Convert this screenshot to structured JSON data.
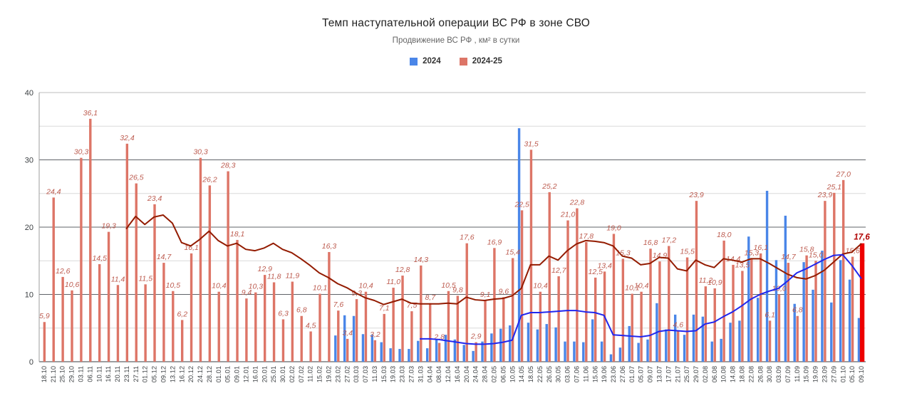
{
  "title": "Темп наступательной операции ВС РФ в зоне СВО",
  "subtitle": "Продвижение ВС РФ , км² в сутки",
  "legend": [
    {
      "label": "2024",
      "color": "#4a86e8"
    },
    {
      "label": "2024-25",
      "color": "#dd7567"
    }
  ],
  "colors": {
    "bar_2024": "#4a86e8",
    "bar_2024_25": "#dd7567",
    "bar_current": "#ee0000",
    "ma_2024_line": "#2026ee",
    "ma_2024_25_line": "#931b00",
    "data_label": "#bd5c50",
    "current_label": "#b00000",
    "grid_major": "#5f6368",
    "grid_minor": "#dadada",
    "grid_top": "#bdbdbd",
    "axis_text": "#3c4043"
  },
  "chart_data": {
    "type": "bar",
    "title": "Темп наступательной операции ВС РФ в зоне СВО",
    "subtitle": "Продвижение ВС РФ , км² в сутки",
    "ylim": [
      0,
      40
    ],
    "yticks": [
      0,
      10,
      20,
      30,
      40
    ],
    "grid": true,
    "legend_position": "top",
    "decimal_separator": ",",
    "categories": [
      "18.10",
      "21.10",
      "25.10",
      "29.10",
      "03.11",
      "06.11",
      "10.11",
      "16.11",
      "20.11",
      "23.11",
      "27.11",
      "01.12",
      "05.12",
      "09.12",
      "13.12",
      "16.12",
      "20.12",
      "24.12",
      "28.12",
      "01.01",
      "05.01",
      "09.01",
      "12.01",
      "16.01",
      "20.01",
      "25.01",
      "30.01",
      "02.02",
      "07.02",
      "11.02",
      "15.02",
      "19.02",
      "23.02",
      "27.02",
      "03.03",
      "07.03",
      "11.03",
      "15.03",
      "19.03",
      "23.03",
      "27.03",
      "31.03",
      "04.04",
      "08.04",
      "12.04",
      "16.04",
      "20.04",
      "24.04",
      "28.04",
      "02.05",
      "06.05",
      "10.05",
      "14.05",
      "18.05",
      "22.05",
      "26.05",
      "30.05",
      "03.06",
      "07.06",
      "11.06",
      "15.06",
      "19.06",
      "23.06",
      "27.06",
      "01.07",
      "05.07",
      "09.07",
      "13.07",
      "17.07",
      "21.07",
      "25.07",
      "29.07",
      "02.08",
      "06.08",
      "10.08",
      "14.08",
      "18.08",
      "22.08",
      "26.08",
      "30.08",
      "03.09",
      "07.09",
      "11.09",
      "15.09",
      "19.09",
      "23.09",
      "27.09",
      "01.10",
      "05.10",
      "09.10"
    ],
    "series": [
      {
        "name": "2024",
        "kind": "bar",
        "labeled": false,
        "values": [
          null,
          null,
          null,
          null,
          null,
          null,
          null,
          null,
          null,
          null,
          null,
          null,
          null,
          null,
          null,
          null,
          null,
          null,
          null,
          null,
          null,
          null,
          null,
          null,
          null,
          null,
          null,
          null,
          null,
          null,
          null,
          null,
          3.9,
          6.9,
          6.8,
          4.1,
          4.0,
          2.9,
          2.0,
          1.9,
          1.9,
          3.1,
          2.0,
          3.4,
          4.0,
          3.3,
          2.5,
          1.6,
          3.0,
          4.2,
          4.9,
          5.4,
          34.7,
          5.8,
          4.8,
          5.6,
          5.1,
          3.0,
          3.0,
          2.9,
          6.3,
          3.0,
          1.1,
          2.1,
          5.3,
          2.8,
          3.3,
          8.7,
          4.8,
          7.0,
          4.0,
          7.0,
          6.7,
          3.0,
          3.4,
          5.8,
          6.1,
          18.6,
          9.5,
          25.4,
          15.1,
          21.7,
          8.6,
          14.8,
          10.7,
          16.5,
          8.8,
          15.1,
          12.2,
          6.5
        ]
      },
      {
        "name": "2024-25",
        "kind": "bar",
        "labeled": true,
        "highlight_last": true,
        "values": [
          5.9,
          24.4,
          12.6,
          10.6,
          30.3,
          36.1,
          14.5,
          19.3,
          11.4,
          32.4,
          26.5,
          11.5,
          23.4,
          14.7,
          10.5,
          6.2,
          16.1,
          30.3,
          26.2,
          10.4,
          28.3,
          18.1,
          9.4,
          10.3,
          12.9,
          11.8,
          6.3,
          11.9,
          6.8,
          4.5,
          10.1,
          16.3,
          7.6,
          3.4,
          9.3,
          10.4,
          3.2,
          7.1,
          11.0,
          12.8,
          7.5,
          14.3,
          8.7,
          2.8,
          10.5,
          9.8,
          17.6,
          2.9,
          9.1,
          16.9,
          9.6,
          15.4,
          22.5,
          31.5,
          10.4,
          25.2,
          12.7,
          21.0,
          22.8,
          17.8,
          12.5,
          13.4,
          19.0,
          15.3,
          10.1,
          10.4,
          16.8,
          14.9,
          17.2,
          4.6,
          15.5,
          23.9,
          11.2,
          10.9,
          18.0,
          14.4,
          13.5,
          15.3,
          16.1,
          6.1,
          10.0,
          14.7,
          6.8,
          15.8,
          15.0,
          23.9,
          25.1,
          27.0,
          15.6,
          17.6
        ]
      },
      {
        "name": "2024 moving average",
        "kind": "line",
        "values": [
          null,
          null,
          null,
          null,
          null,
          null,
          null,
          null,
          null,
          null,
          null,
          null,
          null,
          null,
          null,
          null,
          null,
          null,
          null,
          null,
          null,
          null,
          null,
          null,
          null,
          null,
          null,
          null,
          null,
          null,
          null,
          null,
          null,
          null,
          null,
          null,
          null,
          null,
          null,
          null,
          null,
          3.4,
          3.4,
          3.3,
          3.1,
          2.9,
          2.7,
          2.6,
          2.6,
          2.7,
          2.9,
          3.2,
          6.9,
          7.3,
          7.3,
          7.4,
          7.5,
          7.6,
          7.6,
          7.4,
          7.3,
          6.9,
          4.0,
          3.9,
          3.8,
          3.7,
          3.9,
          4.5,
          4.7,
          4.6,
          4.5,
          4.6,
          5.6,
          5.9,
          6.7,
          7.4,
          8.3,
          9.3,
          10.0,
          10.5,
          10.9,
          12.0,
          13.2,
          13.8,
          14.5,
          15.2,
          15.8,
          15.9,
          14.3,
          12.4
        ]
      },
      {
        "name": "2024-25 moving average",
        "kind": "line",
        "values": [
          null,
          null,
          null,
          null,
          null,
          null,
          null,
          null,
          null,
          19.8,
          21.6,
          20.4,
          21.5,
          21.8,
          20.6,
          17.7,
          17.2,
          18.2,
          19.4,
          18.0,
          17.2,
          17.6,
          16.7,
          16.5,
          16.9,
          17.6,
          16.7,
          16.2,
          15.3,
          14.3,
          13.2,
          12.5,
          11.6,
          11.0,
          10.2,
          9.5,
          9.1,
          8.5,
          8.9,
          9.3,
          8.7,
          8.6,
          8.6,
          8.6,
          8.7,
          8.6,
          9.6,
          9.2,
          9.1,
          9.3,
          9.4,
          9.8,
          10.9,
          14.4,
          14.4,
          15.7,
          15.1,
          16.5,
          17.5,
          18.0,
          17.9,
          17.7,
          17.2,
          15.7,
          15.4,
          14.4,
          14.6,
          15.5,
          15.4,
          13.8,
          13.5,
          15.1,
          14.4,
          14.0,
          15.3,
          15.1,
          14.8,
          15.3,
          15.3,
          14.6,
          13.8,
          13.0,
          12.5,
          12.3,
          12.8,
          13.6,
          14.8,
          16.0,
          16.3,
          17.5
        ]
      }
    ]
  }
}
